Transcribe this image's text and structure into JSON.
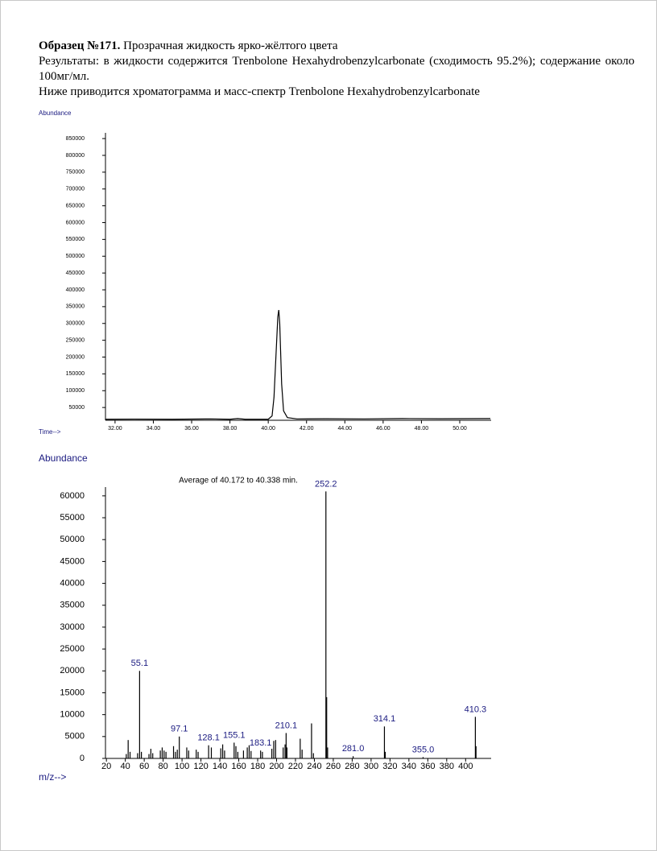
{
  "document": {
    "heading_bold": "Образец №171.",
    "heading_rest": "Прозрачная жидкость ярко-жёлтого цвета",
    "results": "Результаты:  в жидкости содержится Trenbolone Hexahydrobenzylcarbonate (сходимость 95.2%); содержание около 100мг/мл.",
    "below": "Ниже приводится хроматограмма и масс-спектр Trenbolone Hexahydrobenzylcarbonate"
  },
  "chart_data": [
    {
      "type": "line",
      "y_label": "Abundance",
      "x_label": "Time-->",
      "color": "#000000",
      "x": [
        31.5,
        33,
        35,
        37,
        38,
        38.4,
        38.8,
        40,
        40.2,
        40.3,
        40.4,
        40.5,
        40.55,
        40.6,
        40.7,
        40.8,
        41,
        41.5,
        43,
        45,
        47,
        49,
        51.6
      ],
      "values": [
        15000,
        15500,
        15000,
        16000,
        15000,
        17000,
        15000,
        15000,
        25000,
        80000,
        200000,
        320000,
        340000,
        300000,
        120000,
        40000,
        20000,
        16000,
        16500,
        16000,
        17000,
        16500,
        17000
      ],
      "xlim": [
        31.5,
        51.64
      ],
      "ylim": [
        12000,
        867000
      ],
      "xticks": [
        {
          "value": 32,
          "label": "32.00"
        },
        {
          "value": 34,
          "label": "34.00"
        },
        {
          "value": 36,
          "label": "36.00"
        },
        {
          "value": 38,
          "label": "38.00"
        },
        {
          "value": 40,
          "label": "40.00"
        },
        {
          "value": 42,
          "label": "42.00"
        },
        {
          "value": 44,
          "label": "44.00"
        },
        {
          "value": 46,
          "label": "46.00"
        },
        {
          "value": 48,
          "label": "48.00"
        },
        {
          "value": 50,
          "label": "50.00"
        }
      ],
      "yticks": [
        50000,
        100000,
        150000,
        200000,
        250000,
        300000,
        350000,
        400000,
        450000,
        500000,
        550000,
        600000,
        650000,
        700000,
        750000,
        800000,
        850000
      ]
    },
    {
      "type": "bar",
      "title": "Average of 40.172 to 40.338 min.",
      "y_label": "Abundance",
      "x_label": "m/z-->",
      "color": "#000000",
      "label_color": "#1a1a80",
      "x": [
        41,
        43,
        45,
        53,
        55.1,
        57,
        65,
        67,
        69,
        77,
        79,
        81,
        83,
        91,
        93,
        95,
        97.1,
        105,
        107,
        115,
        117,
        128.1,
        131,
        141,
        143,
        145,
        155.1,
        157,
        159,
        165,
        169,
        171,
        173,
        183.1,
        185,
        195,
        197,
        199,
        207,
        209,
        210.1,
        211,
        225,
        227,
        237,
        239,
        252.2,
        253,
        254,
        281,
        314.1,
        315,
        355,
        410.3,
        411
      ],
      "values": [
        1000,
        4200,
        1500,
        1200,
        20000,
        1500,
        1000,
        2200,
        1200,
        1800,
        2500,
        1800,
        1500,
        2800,
        1500,
        2000,
        5000,
        2500,
        1800,
        2000,
        1500,
        3000,
        2500,
        2300,
        3200,
        1800,
        3600,
        2800,
        1500,
        1800,
        2500,
        3000,
        1700,
        1800,
        1500,
        2200,
        4000,
        4200,
        2500,
        3200,
        5800,
        2500,
        4500,
        2000,
        8000,
        1200,
        61000,
        14000,
        2500,
        500,
        7300,
        1500,
        300,
        9500,
        2800
      ],
      "annotations": [
        55.1,
        97.1,
        128.1,
        155.1,
        183.1,
        210.1,
        252.2,
        {
          "value": 281,
          "label": "281.0"
        },
        314.1,
        {
          "value": 355,
          "label": "355.0"
        },
        410.3
      ],
      "xlim": [
        19,
        427
      ],
      "ylim": [
        0,
        62000
      ],
      "xticks": [
        20,
        40,
        60,
        80,
        100,
        120,
        140,
        160,
        180,
        200,
        220,
        240,
        260,
        280,
        300,
        320,
        340,
        360,
        380,
        400
      ],
      "yticks": [
        0,
        5000,
        10000,
        15000,
        20000,
        25000,
        30000,
        35000,
        40000,
        45000,
        50000,
        55000,
        60000
      ]
    }
  ]
}
